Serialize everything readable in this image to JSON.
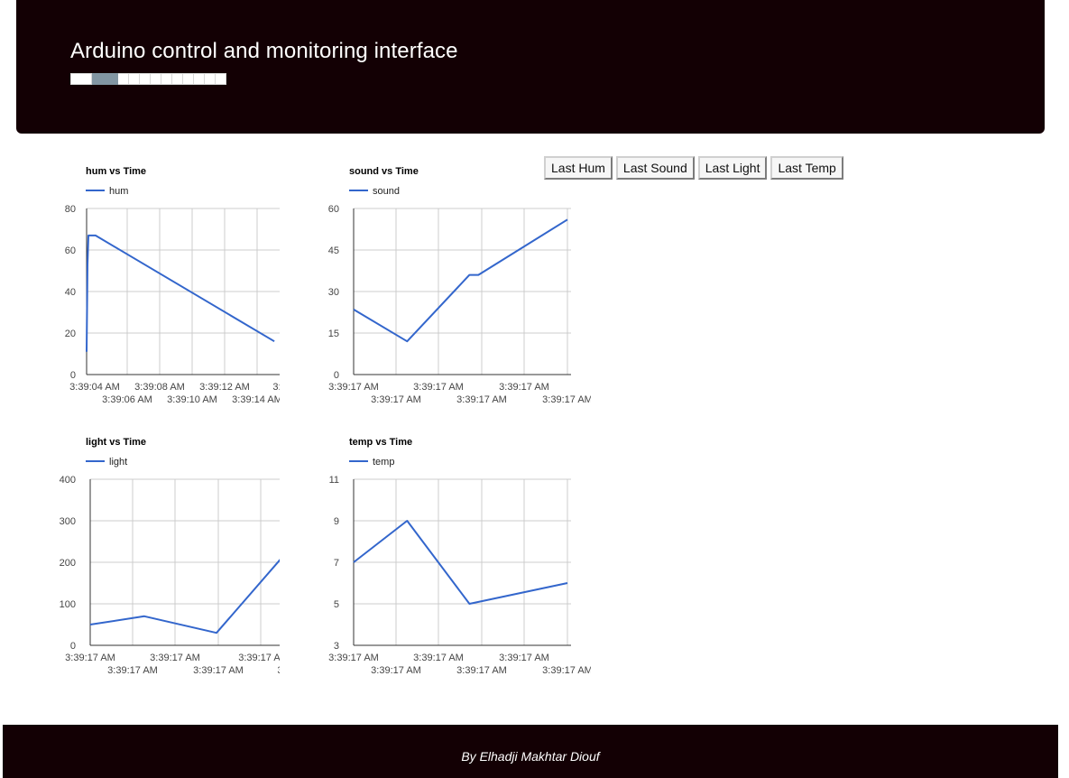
{
  "header": {
    "title": "Arduino control and monitoring interface",
    "progress_segments": 12,
    "progress_active_index": 1,
    "progress_active_color": "#8296a3",
    "background": "#130004"
  },
  "buttons": [
    {
      "label": "Last Hum"
    },
    {
      "label": "Last Sound"
    },
    {
      "label": "Last Light"
    },
    {
      "label": "Last Temp"
    }
  ],
  "chart_data": [
    {
      "type": "line",
      "title": "hum vs Time",
      "series": [
        {
          "name": "hum",
          "color": "#3366cc"
        }
      ],
      "ylim": [
        0,
        80
      ],
      "yticks": [
        "0",
        "20",
        "40",
        "60",
        "80"
      ],
      "xticks_top": [
        "3:39:04 AM",
        "3:39:08 AM",
        "3:39:12 AM",
        "3:3"
      ],
      "xticks_bottom": [
        "3:39:06 AM",
        "3:39:10 AM",
        "3:39:14 AM"
      ],
      "x_seconds": [
        4.0,
        4.05,
        4.1,
        4.5,
        14.5
      ],
      "values": [
        11,
        53,
        67,
        67,
        16
      ],
      "xlim_seconds": [
        4.0,
        15.3
      ],
      "grid": true
    },
    {
      "type": "line",
      "title": "sound vs Time",
      "series": [
        {
          "name": "sound",
          "color": "#3366cc"
        }
      ],
      "ylim": [
        0,
        60
      ],
      "yticks": [
        "0",
        "15",
        "30",
        "45",
        "60"
      ],
      "xticks_top": [
        "3:39:17 AM",
        "3:39:17 AM",
        "3:39:17 AM"
      ],
      "xticks_bottom": [
        "3:39:17 AM",
        "3:39:17 AM",
        "3:39:17 AM"
      ],
      "x_index": [
        0,
        1.2,
        2.6,
        2.8,
        4.8
      ],
      "values": [
        23.5,
        12,
        36,
        36,
        56
      ],
      "xlim_index": [
        0,
        4.8
      ],
      "grid": true
    },
    {
      "type": "line",
      "title": "light vs Time",
      "series": [
        {
          "name": "light",
          "color": "#3366cc"
        }
      ],
      "ylim": [
        0,
        400
      ],
      "yticks": [
        "0",
        "100",
        "200",
        "300",
        "400"
      ],
      "xticks_top": [
        "3:39:17 AM",
        "3:39:17 AM",
        "3:39:17 AI"
      ],
      "xticks_bottom": [
        "3:39:17 AM",
        "3:39:17 AM",
        "3:"
      ],
      "x_index": [
        0,
        1.2,
        2.8,
        4.4
      ],
      "values": [
        50,
        70,
        30,
        230
      ],
      "xlim_index": [
        0,
        4.4
      ],
      "grid": true
    },
    {
      "type": "line",
      "title": "temp vs Time",
      "series": [
        {
          "name": "temp",
          "color": "#3366cc"
        }
      ],
      "ylim": [
        3,
        11
      ],
      "yticks": [
        "3",
        "5",
        "7",
        "9",
        "11"
      ],
      "xticks_top": [
        "3:39:17 AM",
        "3:39:17 AM",
        "3:39:17 AM"
      ],
      "xticks_bottom": [
        "3:39:17 AM",
        "3:39:17 AM",
        "3:39:17 AM"
      ],
      "x_index": [
        0,
        1.2,
        2.6,
        4.8
      ],
      "values": [
        7,
        9,
        5,
        6
      ],
      "xlim_index": [
        0,
        4.8
      ],
      "grid": true
    }
  ],
  "footer": {
    "credit": "By Elhadji Makhtar Diouf",
    "background": "#130004"
  }
}
